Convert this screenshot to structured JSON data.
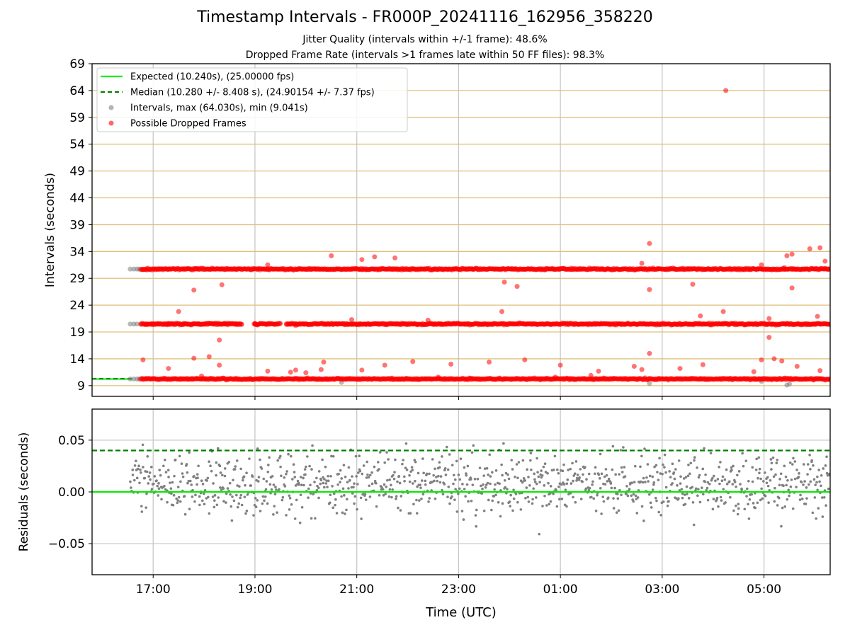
{
  "chart_data": [
    {
      "type": "scatter",
      "title": "Timestamp Intervals - FR000P_20241116_162956_358220",
      "subtitle_lines": [
        "Jitter Quality (intervals within +/-1 frame): 48.6%",
        "Dropped Frame Rate (intervals >1 frames late within 50 FF files): 98.3%"
      ],
      "xlabel": "",
      "ylabel": "Intervals (seconds)",
      "ylim": [
        7,
        69
      ],
      "yticks": [
        9,
        14,
        19,
        24,
        29,
        34,
        39,
        44,
        49,
        54,
        59,
        64,
        69
      ],
      "xlim_hours": [
        15.8,
        30.3
      ],
      "grid": true,
      "legend_position": "top-left",
      "legend": [
        {
          "label": "Expected (10.240s), (25.00000 fps)",
          "color": "#00ee00",
          "style": "solid"
        },
        {
          "label": "Median (10.280 +/- 8.408 s), (24.90154 +/- 7.37 fps)",
          "color": "#008000",
          "style": "dashed"
        },
        {
          "label": "Intervals, max (64.030s), min (9.041s)",
          "color": "#808080",
          "style": "point"
        },
        {
          "label": "Possible Dropped Frames",
          "color": "#ff0000",
          "style": "point"
        }
      ],
      "expected_interval": 10.24,
      "median_interval": 10.28,
      "bands": [
        {
          "level": 10.24,
          "start": 16.75,
          "end": 30.3
        },
        {
          "level": 20.48,
          "start": 16.75,
          "end": 30.3
        },
        {
          "level": 30.72,
          "start": 16.75,
          "end": 30.3
        }
      ],
      "band_gaps": [
        {
          "level": 20.48,
          "start": 18.75,
          "end": 18.97
        },
        {
          "level": 20.48,
          "start": 19.5,
          "end": 19.6
        }
      ],
      "gray_points": [
        [
          16.55,
          10.24
        ],
        [
          16.62,
          10.24
        ],
        [
          16.68,
          10.24
        ],
        [
          16.72,
          10.24
        ],
        [
          16.55,
          20.48
        ],
        [
          16.62,
          20.48
        ],
        [
          16.68,
          20.48
        ],
        [
          16.55,
          30.72
        ],
        [
          16.62,
          30.72
        ],
        [
          16.68,
          30.72
        ],
        [
          16.72,
          30.72
        ],
        [
          26.75,
          9.4
        ],
        [
          28.95,
          9.8
        ],
        [
          29.45,
          9.1
        ],
        [
          29.5,
          9.3
        ],
        [
          20.7,
          9.6
        ]
      ],
      "outliers": [
        [
          28.25,
          64.0
        ],
        [
          26.75,
          35.5
        ],
        [
          29.9,
          34.5
        ],
        [
          30.1,
          34.7
        ],
        [
          20.5,
          33.2
        ],
        [
          21.1,
          32.5
        ],
        [
          21.35,
          33.0
        ],
        [
          21.75,
          32.8
        ],
        [
          29.45,
          33.2
        ],
        [
          29.55,
          33.5
        ],
        [
          30.2,
          32.2
        ],
        [
          26.6,
          31.8
        ],
        [
          28.95,
          31.5
        ],
        [
          19.25,
          31.5
        ],
        [
          23.9,
          28.3
        ],
        [
          24.15,
          27.5
        ],
        [
          26.75,
          26.9
        ],
        [
          27.6,
          27.9
        ],
        [
          29.55,
          27.2
        ],
        [
          17.8,
          26.8
        ],
        [
          18.35,
          27.8
        ],
        [
          29.4,
          31.0
        ],
        [
          17.3,
          20.6
        ],
        [
          17.6,
          20.6
        ],
        [
          18.1,
          20.6
        ],
        [
          18.4,
          20.6
        ],
        [
          19.0,
          20.6
        ],
        [
          23.85,
          22.8
        ],
        [
          27.75,
          22.0
        ],
        [
          28.2,
          22.8
        ],
        [
          29.1,
          21.5
        ],
        [
          20.9,
          21.3
        ],
        [
          22.4,
          21.2
        ],
        [
          30.05,
          21.9
        ],
        [
          17.5,
          22.8
        ],
        [
          18.3,
          17.5
        ],
        [
          29.1,
          18.0
        ],
        [
          19.8,
          20.2
        ],
        [
          16.8,
          13.8
        ],
        [
          17.8,
          14.1
        ],
        [
          18.1,
          14.4
        ],
        [
          18.3,
          12.8
        ],
        [
          17.3,
          12.2
        ],
        [
          19.25,
          11.7
        ],
        [
          19.7,
          11.5
        ],
        [
          19.8,
          11.9
        ],
        [
          20.0,
          11.4
        ],
        [
          20.35,
          13.4
        ],
        [
          20.3,
          12.0
        ],
        [
          21.1,
          11.9
        ],
        [
          21.55,
          12.8
        ],
        [
          22.1,
          13.5
        ],
        [
          22.85,
          13.0
        ],
        [
          23.6,
          13.4
        ],
        [
          24.3,
          13.8
        ],
        [
          25.0,
          12.8
        ],
        [
          25.75,
          11.7
        ],
        [
          26.45,
          12.6
        ],
        [
          26.6,
          12.0
        ],
        [
          26.75,
          15.0
        ],
        [
          27.35,
          12.2
        ],
        [
          27.8,
          12.9
        ],
        [
          28.8,
          11.6
        ],
        [
          28.95,
          13.8
        ],
        [
          29.2,
          14.0
        ],
        [
          29.35,
          13.6
        ],
        [
          29.65,
          12.6
        ],
        [
          30.1,
          11.8
        ],
        [
          22.6,
          10.6
        ],
        [
          17.95,
          10.8
        ],
        [
          25.6,
          10.9
        ],
        [
          24.9,
          10.6
        ]
      ]
    },
    {
      "type": "scatter",
      "xlabel": "Time (UTC)",
      "ylabel": "Residuals (seconds)",
      "ylim": [
        -0.08,
        0.08
      ],
      "yticks": [
        {
          "value": 0.05,
          "label": "0.05"
        },
        {
          "value": 0.0,
          "label": "0.00"
        },
        {
          "value": -0.05,
          "label": "−0.05"
        }
      ],
      "xticks": [
        {
          "hour": 17,
          "label": "17:00"
        },
        {
          "hour": 19,
          "label": "19:00"
        },
        {
          "hour": 21,
          "label": "21:00"
        },
        {
          "hour": 23,
          "label": "23:00"
        },
        {
          "hour": 25,
          "label": "01:00"
        },
        {
          "hour": 27,
          "label": "03:00"
        },
        {
          "hour": 29,
          "label": "05:00"
        }
      ],
      "xlim_hours": [
        15.8,
        30.3
      ],
      "grid": true,
      "zero_line": {
        "value": 0.0,
        "color": "#00ee00",
        "style": "solid"
      },
      "median_line": {
        "value": 0.04,
        "color": "#008000",
        "style": "dashed"
      },
      "points_start_hour": 16.55,
      "points_end_hour": 30.3,
      "points_count": 1100,
      "points_center": 0.008,
      "points_spread": 0.025,
      "points_color": "#808080"
    }
  ]
}
